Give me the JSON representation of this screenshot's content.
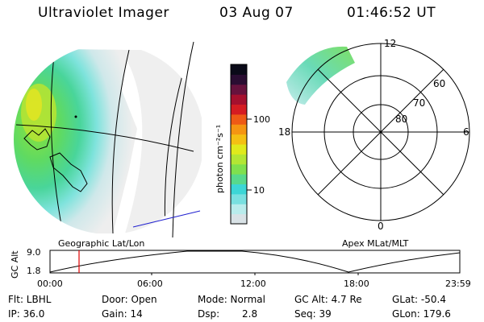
{
  "header": {
    "instrument": "Ultraviolet Imager",
    "date": "03 Aug 07",
    "time": "01:46:52 UT"
  },
  "colorbar": {
    "unit_label": "photon cm⁻²s⁻¹",
    "ticks": [
      "100",
      "10"
    ],
    "colors": [
      "#d9e2e6",
      "#b9ecec",
      "#79e0e0",
      "#3cd6d6",
      "#57d98c",
      "#7fe04e",
      "#b3e634",
      "#e0ea1c",
      "#f4c013",
      "#f59512",
      "#ee5a16",
      "#d51c22",
      "#a5102e",
      "#66123d",
      "#2a0d32",
      "#0a0a18"
    ]
  },
  "polar_plot": {
    "mlt_labels": [
      "12",
      "6",
      "0",
      "18"
    ],
    "lat_labels": [
      "60",
      "70",
      "80"
    ]
  },
  "altitude_strip": {
    "ylabel": "GC Alt",
    "ytick_labels": [
      "9.0",
      "1.8"
    ],
    "left_caption": "Geographic Lat/Lon",
    "right_caption": "Apex MLat/MLT",
    "xtick_labels": [
      "00:00",
      "06:00",
      "12:00",
      "18:00",
      "23:59"
    ],
    "marker_color": "#e00000"
  },
  "info": {
    "row1": {
      "flt": "Flt: LBHL",
      "door": "Door: Open",
      "mode": "Mode: Normal",
      "gcalt": "GC Alt: 4.7 Re",
      "glat": "GLat: -50.4"
    },
    "row2": {
      "ip": "IP: 36.0",
      "gain": "Gain: 14",
      "dsp_label": "Dsp:",
      "dsp_value": "2.8",
      "seq": "Seq: 39",
      "glon": "GLon: 179.6"
    }
  }
}
